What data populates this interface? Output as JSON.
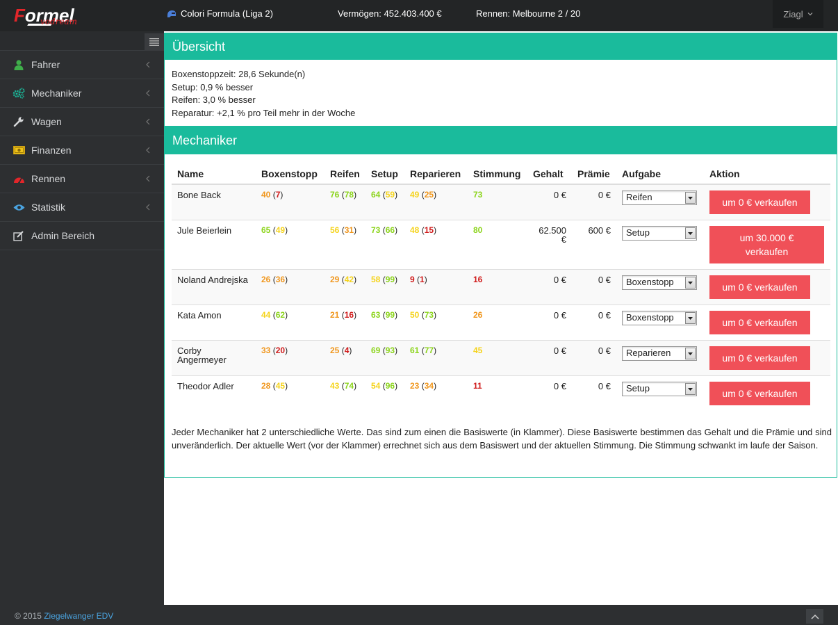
{
  "brand": {
    "logo_word": "Formel",
    "logo_sub": "vodream"
  },
  "topbar": {
    "league": "Colori Formula (Liga 2)",
    "money": "Vermögen: 452.403.400 €",
    "race": "Rennen: Melbourne 2 / 20",
    "user": "Ziagl"
  },
  "sidebar": {
    "items": [
      {
        "label": "Fahrer",
        "icon": "user-icon",
        "color": "#3fae4a"
      },
      {
        "label": "Mechaniker",
        "icon": "gears-icon",
        "color": "#1abb9c"
      },
      {
        "label": "Wagen",
        "icon": "wrench-icon",
        "color": "#d4d6d8"
      },
      {
        "label": "Finanzen",
        "icon": "money-icon",
        "color": "#f0c419"
      },
      {
        "label": "Rennen",
        "icon": "tachometer-icon",
        "color": "#e2262a"
      },
      {
        "label": "Statistik",
        "icon": "eye-icon",
        "color": "#4aa3df"
      },
      {
        "label": "Admin Bereich",
        "icon": "edit-icon",
        "color": "#d4d6d8"
      }
    ]
  },
  "overview": {
    "title": "Übersicht",
    "lines": [
      "Boxenstoppzeit: 28,6 Sekunde(n)",
      "Setup: 0,9 % besser",
      "Reifen: 3,0 % besser",
      "Reparatur: +2,1 % pro Teil mehr in der Woche"
    ]
  },
  "mechanics": {
    "title": "Mechaniker",
    "headers": [
      "Name",
      "Boxenstopp",
      "Reifen",
      "Setup",
      "Reparieren",
      "Stimmung",
      "Gehalt",
      "Prämie",
      "Aufgabe",
      "Aktion"
    ],
    "rows": [
      {
        "name": "Bone Back",
        "boxenstopp": [
          "40",
          "7"
        ],
        "reifen": [
          "76",
          "78"
        ],
        "setup": [
          "64",
          "59"
        ],
        "reparieren": [
          "49",
          "25"
        ],
        "stimmung": "73",
        "gehalt": "0 €",
        "praemie": "0 €",
        "aufgabe": "Reifen",
        "aktion": "um 0 € verkaufen"
      },
      {
        "name": "Jule Beierlein",
        "boxenstopp": [
          "65",
          "49"
        ],
        "reifen": [
          "56",
          "31"
        ],
        "setup": [
          "73",
          "66"
        ],
        "reparieren": [
          "48",
          "15"
        ],
        "stimmung": "80",
        "gehalt": "62.500 €",
        "praemie": "600 €",
        "aufgabe": "Setup",
        "aktion": "um 30.000 € verkaufen"
      },
      {
        "name": "Noland Andrejska",
        "boxenstopp": [
          "26",
          "36"
        ],
        "reifen": [
          "29",
          "42"
        ],
        "setup": [
          "58",
          "99"
        ],
        "reparieren": [
          "9",
          "1"
        ],
        "stimmung": "16",
        "gehalt": "0 €",
        "praemie": "0 €",
        "aufgabe": "Boxenstopp",
        "aktion": "um 0 € verkaufen"
      },
      {
        "name": "Kata Amon",
        "boxenstopp": [
          "44",
          "62"
        ],
        "reifen": [
          "21",
          "16"
        ],
        "setup": [
          "63",
          "99"
        ],
        "reparieren": [
          "50",
          "73"
        ],
        "stimmung": "26",
        "gehalt": "0 €",
        "praemie": "0 €",
        "aufgabe": "Boxenstopp",
        "aktion": "um 0 € verkaufen"
      },
      {
        "name": "Corby Angermeyer",
        "boxenstopp": [
          "33",
          "20"
        ],
        "reifen": [
          "25",
          "4"
        ],
        "setup": [
          "69",
          "93"
        ],
        "reparieren": [
          "61",
          "77"
        ],
        "stimmung": "45",
        "gehalt": "0 €",
        "praemie": "0 €",
        "aufgabe": "Reparieren",
        "aktion": "um 0 € verkaufen"
      },
      {
        "name": "Theodor Adler",
        "boxenstopp": [
          "28",
          "45"
        ],
        "reifen": [
          "43",
          "74"
        ],
        "setup": [
          "54",
          "96"
        ],
        "reparieren": [
          "23",
          "34"
        ],
        "stimmung": "11",
        "gehalt": "0 €",
        "praemie": "0 €",
        "aufgabe": "Setup",
        "aktion": "um 0 € verkaufen"
      }
    ],
    "note": "Jeder Mechaniker hat 2 unterschiedliche Werte. Das sind zum einen die Basiswerte (in Klammer). Diese Basiswerte bestimmen das Gehalt und die Prämie und sind unveränderlich. Der aktuelle Wert (vor der Klammer) errechnet sich aus dem Basiswert und der aktuellen Stimmung. Die Stimmung schwankt im laufe der Saison."
  },
  "footer": {
    "copyright": "© 2015 ",
    "company": "Ziegelwanger EDV"
  },
  "colors": {
    "accent": "#1abb9c",
    "danger": "#f05058",
    "sidebar_bg": "#2d2f31"
  }
}
